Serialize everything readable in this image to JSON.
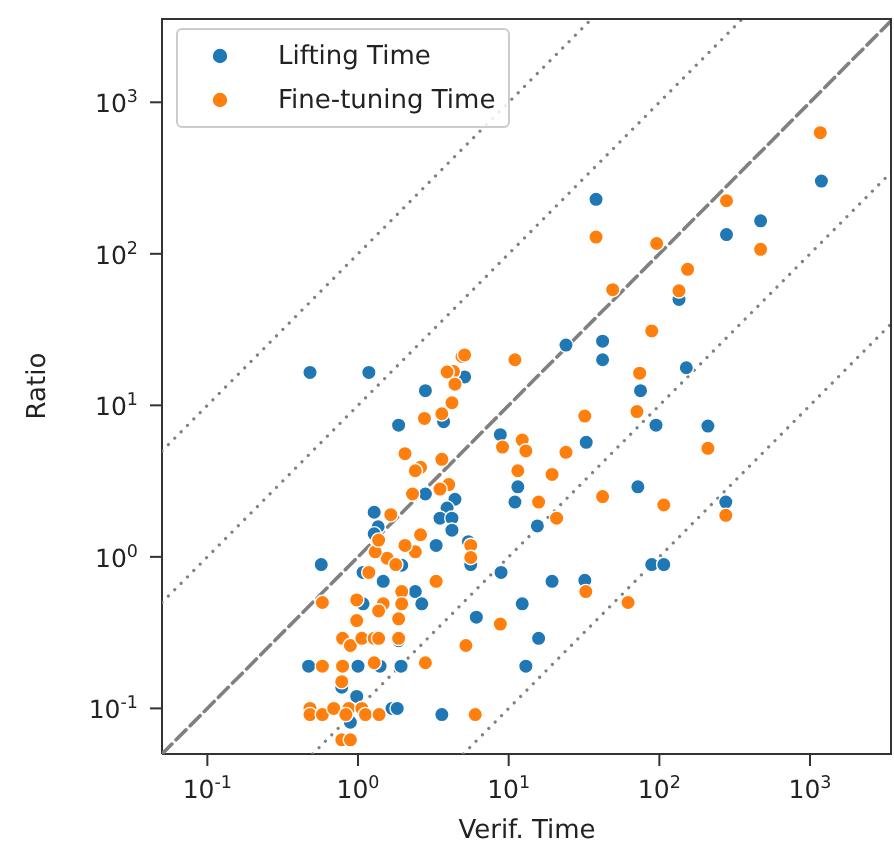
{
  "chart_data": {
    "type": "scatter",
    "xlabel": "Verif. Time",
    "ylabel": "Ratio",
    "log": "xy",
    "grid": false,
    "legend": "top left",
    "marker": "circle",
    "xlim": [
      0.05,
      3500
    ],
    "ylim": [
      0.05,
      3600
    ],
    "xticks": [
      {
        "value": 0.1,
        "label": "10$^{-1}$"
      },
      {
        "value": 1,
        "label": "10$^{0}$"
      },
      {
        "value": 10,
        "label": "10$^{1}$"
      },
      {
        "value": 100,
        "label": "10$^{2}$"
      },
      {
        "value": 1000,
        "label": "10$^{3}$"
      }
    ],
    "yticks": [
      {
        "value": 0.1,
        "label": "10$^{-1}$"
      },
      {
        "value": 1,
        "label": "10$^{0}$"
      },
      {
        "value": 10,
        "label": "10$^{1}$"
      },
      {
        "value": 100,
        "label": "10$^{2}$"
      },
      {
        "value": 1000,
        "label": "10$^{3}$"
      }
    ],
    "series": [
      {
        "type": "line",
        "color": "#808080",
        "line_style": "dotted",
        "marker": "none",
        "x": [
          0.05,
          35
        ],
        "values": [
          5,
          3500
        ]
      },
      {
        "type": "line",
        "color": "#808080",
        "line_style": "dotted",
        "marker": "none",
        "x": [
          0.05,
          350
        ],
        "values": [
          0.5,
          3500
        ]
      },
      {
        "type": "line",
        "color": "#808080",
        "line_style": "dashed",
        "marker": "none",
        "x": [
          0.05,
          3500
        ],
        "values": [
          0.05,
          3500
        ]
      },
      {
        "type": "line",
        "color": "#808080",
        "line_style": "dotted",
        "marker": "none",
        "x": [
          0.5,
          3500
        ],
        "values": [
          0.05,
          350
        ]
      },
      {
        "type": "line",
        "color": "#808080",
        "line_style": "dotted",
        "marker": "none",
        "x": [
          5,
          3500
        ],
        "values": [
          0.05,
          35
        ]
      },
      {
        "name": "Lifting Time",
        "color": "#1f77b4",
        "x": [
          0.48,
          1.18,
          38,
          1190,
          470,
          279,
          135,
          24,
          42,
          42,
          151,
          75,
          95,
          210,
          32.7,
          72,
          276,
          11.5,
          11,
          15.5,
          8.8,
          8.9,
          19.4,
          32,
          89,
          107,
          12.3,
          15.8,
          13,
          6.1,
          3.6,
          5.1,
          2.8,
          3.7,
          1.86,
          4.4,
          3.9,
          3.5,
          4.2,
          4.2,
          5.4,
          5.6,
          3.3,
          2.8,
          1.28,
          1.36,
          1.28,
          1.47,
          1.95,
          1.08,
          2.4,
          2.65,
          1.08,
          0.57,
          0.47,
          1.0,
          1.93,
          1.4,
          1.86,
          0.98,
          0.89,
          1.68,
          1.82,
          0.78
        ],
        "values": [
          16.5,
          16.5,
          229,
          302,
          165,
          134,
          50,
          25,
          26.5,
          20,
          17.7,
          12.5,
          7.4,
          7.3,
          5.7,
          2.9,
          2.3,
          2.9,
          2.3,
          1.6,
          6.4,
          0.79,
          0.69,
          0.7,
          0.89,
          0.89,
          0.49,
          0.29,
          0.19,
          0.4,
          0.091,
          15.4,
          12.5,
          7.8,
          7.4,
          2.4,
          2.1,
          1.8,
          1.8,
          1.5,
          1.26,
          0.89,
          1.19,
          2.6,
          1.97,
          1.58,
          1.42,
          0.69,
          0.88,
          0.79,
          0.59,
          0.49,
          0.49,
          0.89,
          0.19,
          0.19,
          0.19,
          0.19,
          0.28,
          0.12,
          0.081,
          0.1,
          0.1,
          0.138
        ]
      },
      {
        "name": "Fine-tuning Time",
        "color": "#ff7f0e",
        "x": [
          1170,
          279,
          470,
          96,
          38,
          154,
          135,
          49,
          89,
          11,
          74,
          71,
          32,
          210,
          9.1,
          12.3,
          13,
          24,
          11.5,
          19.4,
          42,
          107,
          15.8,
          20.8,
          276,
          32.5,
          62,
          8.8,
          5.2,
          6.0,
          5.6,
          5.6,
          4.9,
          5.1,
          4.3,
          3.9,
          4.4,
          4.2,
          3.6,
          2.76,
          2.05,
          2.6,
          2.4,
          3.6,
          4.0,
          3.5,
          2.3,
          1.65,
          2.6,
          2.4,
          2.05,
          1.56,
          1.78,
          1.3,
          1.37,
          1.18,
          3.3,
          1.95,
          1.95,
          1.47,
          1.37,
          0.98,
          0.98,
          1.86,
          0.58,
          0.79,
          0.89,
          1.06,
          1.28,
          1.37,
          1.86,
          0.58,
          0.79,
          1.28,
          2.8,
          0.78,
          0.48,
          0.48,
          0.58,
          0.69,
          0.87,
          1.06,
          1.12,
          0.83,
          1.38,
          0.78,
          0.89
        ],
        "values": [
          630,
          224,
          107,
          117,
          129,
          79,
          57,
          58,
          31,
          20,
          16.3,
          9.1,
          8.5,
          5.2,
          5.3,
          5.9,
          5.0,
          4.9,
          3.7,
          3.5,
          2.5,
          2.2,
          2.3,
          1.8,
          1.88,
          0.59,
          0.5,
          0.36,
          0.26,
          0.091,
          1.19,
          0.99,
          21,
          21.5,
          16.7,
          16.6,
          13.8,
          10.4,
          8.8,
          8.2,
          4.8,
          3.9,
          3.7,
          4.4,
          3.0,
          2.8,
          2.6,
          1.9,
          1.4,
          1.08,
          1.19,
          0.98,
          0.89,
          1.08,
          1.29,
          0.79,
          0.69,
          0.59,
          0.49,
          0.49,
          0.44,
          0.52,
          0.38,
          0.39,
          0.5,
          0.29,
          0.26,
          0.29,
          0.29,
          0.29,
          0.29,
          0.19,
          0.19,
          0.2,
          0.2,
          0.15,
          0.1,
          0.091,
          0.091,
          0.1,
          0.1,
          0.1,
          0.091,
          0.091,
          0.091,
          0.062,
          0.062
        ]
      }
    ]
  }
}
